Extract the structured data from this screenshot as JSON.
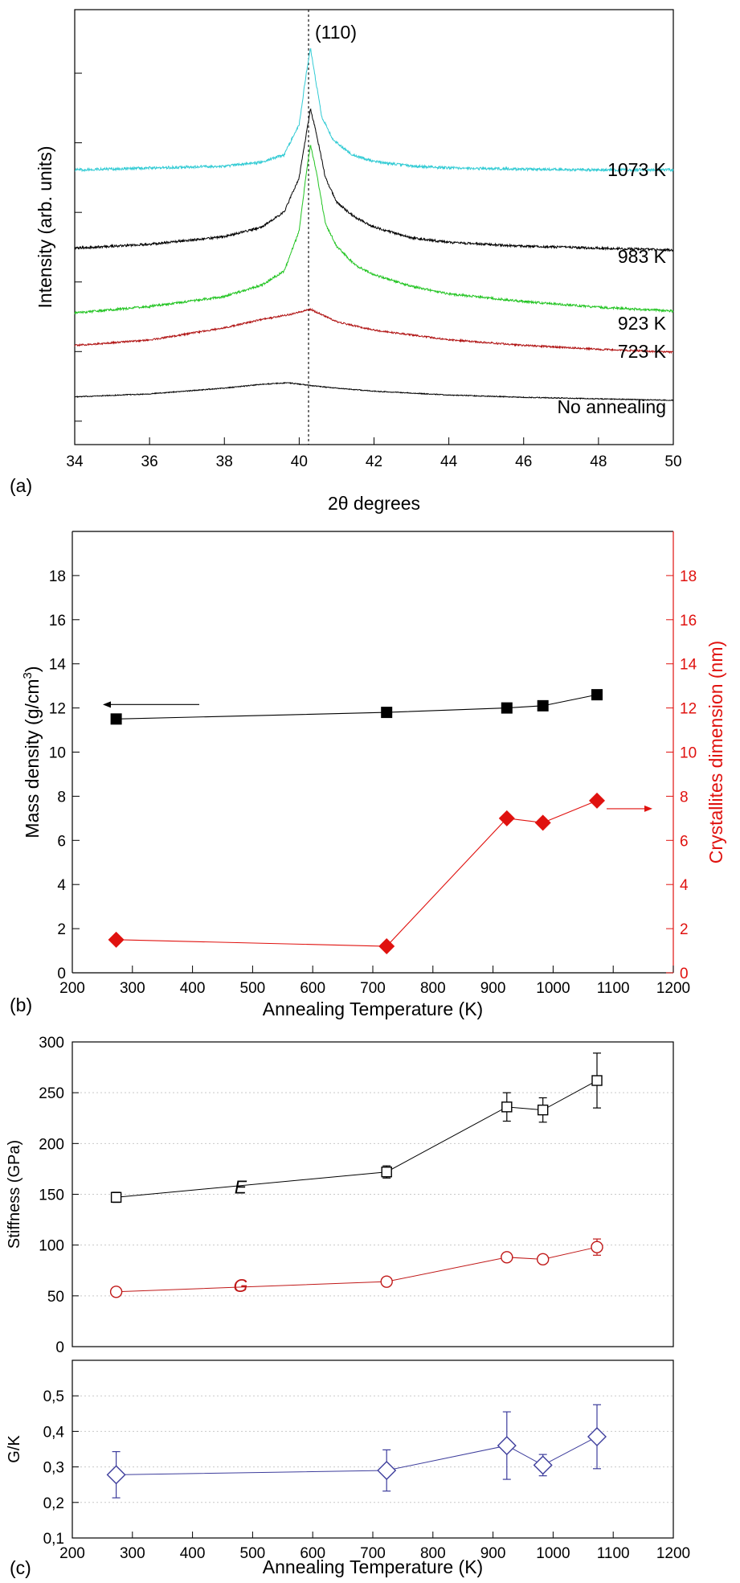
{
  "chart_data": [
    {
      "panel_label": "(a)",
      "type": "line",
      "xlabel": "2θ degrees",
      "ylabel": "Intensity (arb. units)",
      "xlim": [
        34,
        50
      ],
      "x_ticks": [
        34,
        36,
        38,
        40,
        42,
        44,
        46,
        48,
        50
      ],
      "y_ticks_labeled": false,
      "reference_line": {
        "x": 40.25,
        "label": "(110)",
        "style": "dashed",
        "color": "#000000"
      },
      "series": [
        {
          "name": "No annealing",
          "color": "#000000",
          "x": [
            34,
            36,
            38,
            39,
            39.7,
            40.3,
            41,
            42,
            44,
            46,
            48,
            50
          ],
          "values": [
            0.25,
            0.33,
            0.48,
            0.58,
            0.62,
            0.55,
            0.48,
            0.4,
            0.3,
            0.24,
            0.2,
            0.16
          ],
          "noise": 0.012
        },
        {
          "name": "723 K",
          "color": "#b01212",
          "x": [
            34,
            36,
            38,
            39,
            39.8,
            40.3,
            41,
            42,
            44,
            46,
            48,
            50
          ],
          "values": [
            1.6,
            1.74,
            2.06,
            2.28,
            2.42,
            2.55,
            2.22,
            2.0,
            1.75,
            1.6,
            1.5,
            1.42
          ],
          "noise": 0.022
        },
        {
          "name": "923 K",
          "color": "#22c422",
          "x": [
            34,
            36,
            38,
            39,
            39.6,
            40.0,
            40.2,
            40.3,
            40.45,
            40.7,
            41,
            41.5,
            42,
            43,
            44,
            46,
            48,
            50
          ],
          "values": [
            2.45,
            2.62,
            2.88,
            3.18,
            3.55,
            4.6,
            6.2,
            6.85,
            6.2,
            4.8,
            4.2,
            3.7,
            3.45,
            3.15,
            2.95,
            2.75,
            2.6,
            2.5
          ],
          "noise": 0.03
        },
        {
          "name": "983 K",
          "color": "#000000",
          "x": [
            34,
            36,
            38,
            39,
            39.6,
            40.0,
            40.2,
            40.3,
            40.45,
            40.7,
            41,
            41.5,
            42,
            43,
            44,
            46,
            48,
            50
          ],
          "values": [
            4.15,
            4.25,
            4.45,
            4.7,
            5.1,
            6.0,
            7.2,
            7.8,
            7.2,
            6.0,
            5.35,
            4.95,
            4.7,
            4.42,
            4.3,
            4.2,
            4.15,
            4.1
          ],
          "noise": 0.03
        },
        {
          "name": "1073 K",
          "color": "#32cbd4",
          "x": [
            34,
            36,
            38,
            39,
            39.6,
            40.0,
            40.2,
            40.3,
            40.4,
            40.6,
            40.9,
            41.4,
            42,
            43,
            44,
            46,
            48,
            50
          ],
          "values": [
            6.2,
            6.25,
            6.3,
            6.4,
            6.6,
            7.4,
            8.8,
            9.4,
            8.8,
            7.6,
            7.0,
            6.6,
            6.42,
            6.3,
            6.25,
            6.22,
            6.2,
            6.2
          ],
          "noise": 0.035
        }
      ],
      "ylim": [
        -1.0,
        10.4
      ]
    },
    {
      "panel_label": "(b)",
      "type": "scatter",
      "xlabel": "Annealing Temperature (K)",
      "ylabel_left": "Mass density (g/cm",
      "ylabel_left_sup": "3",
      "ylabel_left_end": ")",
      "ylabel_right": "Crystallites dimension (nm)",
      "xlim": [
        200,
        1200
      ],
      "ylim": [
        0,
        20
      ],
      "x_ticks": [
        200,
        300,
        400,
        500,
        600,
        700,
        800,
        900,
        1000,
        1100,
        1200
      ],
      "y_ticks": [
        0,
        2,
        4,
        6,
        8,
        10,
        12,
        14,
        16,
        18
      ],
      "left_axis_color": "#000000",
      "right_axis_color": "#e0120f",
      "series": [
        {
          "name": "Mass density",
          "axis": "left",
          "marker": "square",
          "color": "#000000",
          "x": [
            273,
            723,
            923,
            983,
            1073
          ],
          "values": [
            11.5,
            11.8,
            12.0,
            12.1,
            12.6
          ]
        },
        {
          "name": "Crystallites dimension",
          "axis": "right",
          "marker": "diamond",
          "color": "#e0120f",
          "x": [
            273,
            723,
            923,
            983,
            1073
          ],
          "values": [
            1.5,
            1.2,
            7.0,
            6.8,
            7.8
          ]
        }
      ]
    },
    {
      "panel_label": "(c)",
      "type": "line",
      "ylabel": "Stiffness (GPa)",
      "xlim": [
        200,
        1200
      ],
      "ylim": [
        0,
        300
      ],
      "y_ticks": [
        0,
        50,
        100,
        150,
        200,
        250,
        300
      ],
      "grid": true,
      "series": [
        {
          "name": "E",
          "marker": "open-square",
          "color": "#000000",
          "x": [
            273,
            723,
            923,
            983,
            1073
          ],
          "values": [
            147,
            172,
            236,
            233,
            262
          ],
          "errors": [
            5,
            6,
            14,
            12,
            27
          ]
        },
        {
          "name": "G",
          "marker": "open-circle",
          "color": "#c01818",
          "x": [
            273,
            723,
            923,
            983,
            1073
          ],
          "values": [
            54,
            64,
            88,
            86,
            98
          ],
          "errors": [
            4,
            4,
            4,
            4,
            8
          ]
        }
      ]
    },
    {
      "panel_label": "(c)",
      "type": "line",
      "xlabel": "Annealing Temperature (K)",
      "ylabel": "G/K",
      "xlim": [
        200,
        1200
      ],
      "ylim": [
        0.1,
        0.6
      ],
      "x_ticks": [
        200,
        300,
        400,
        500,
        600,
        700,
        800,
        900,
        1000,
        1100,
        1200
      ],
      "y_ticks": [
        "0,1",
        "0,2",
        "0,3",
        "0,4",
        "0,5"
      ],
      "y_tick_values": [
        0.1,
        0.2,
        0.3,
        0.4,
        0.5
      ],
      "grid": true,
      "series": [
        {
          "marker": "open-diamond",
          "color": "#3d3d9c",
          "x": [
            273,
            723,
            923,
            983,
            1073
          ],
          "values": [
            0.278,
            0.29,
            0.36,
            0.305,
            0.385
          ],
          "errors": [
            0.065,
            0.058,
            0.095,
            0.03,
            0.09
          ]
        }
      ]
    }
  ]
}
